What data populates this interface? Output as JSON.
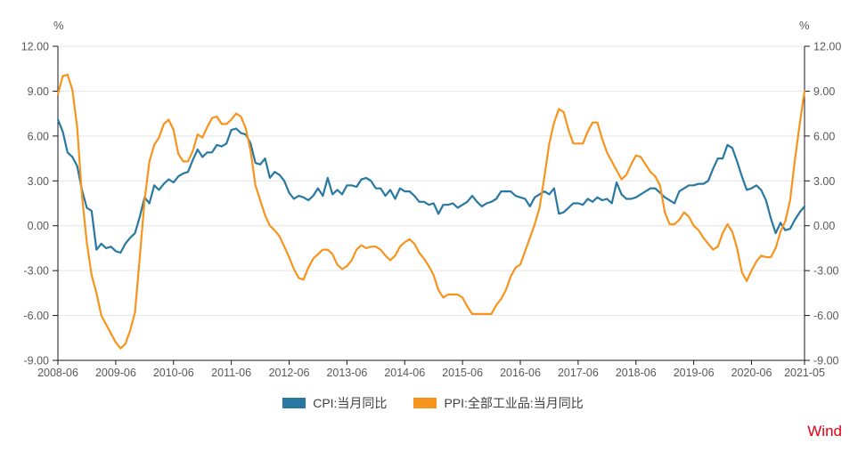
{
  "watermark": {
    "label": "Wind",
    "color": "#E60012"
  },
  "legend": {
    "position": "bottom-center"
  },
  "chart_data": {
    "type": "line",
    "title": "",
    "frequency": "monthly",
    "x_range": [
      "2008-06",
      "2021-05"
    ],
    "grid": {
      "horizontal": true,
      "vertical": false,
      "color": "#E4E4E4"
    },
    "axis_color": "#1A1A1A",
    "tick_label_color": "#595959",
    "y_axis": {
      "unit": "%",
      "min": -9,
      "max": 12,
      "step": 3,
      "tick_labels": [
        "12.00",
        "9.00",
        "6.00",
        "3.00",
        "0.00",
        "-3.00",
        "-6.00",
        "-9.00"
      ],
      "tick_values": [
        12,
        9,
        6,
        3,
        0,
        -3,
        -6,
        -9
      ],
      "dual_axis": true
    },
    "x_axis": {
      "tick_labels": [
        "2008-06",
        "2009-06",
        "2010-06",
        "2011-06",
        "2012-06",
        "2013-06",
        "2014-06",
        "2015-06",
        "2016-06",
        "2017-06",
        "2018-06",
        "2019-06",
        "2020-06",
        "2021-05"
      ],
      "tick_month_indices": [
        0,
        12,
        24,
        36,
        48,
        60,
        72,
        84,
        96,
        108,
        120,
        132,
        144,
        155
      ]
    },
    "series": [
      {
        "name": "CPI:当月同比",
        "color": "#2878A2",
        "values": [
          7.1,
          6.3,
          4.9,
          4.6,
          4.0,
          2.4,
          1.2,
          1.0,
          -1.6,
          -1.2,
          -1.5,
          -1.4,
          -1.7,
          -1.8,
          -1.2,
          -0.8,
          -0.5,
          0.6,
          1.9,
          1.5,
          2.7,
          2.4,
          2.8,
          3.1,
          2.9,
          3.3,
          3.5,
          3.6,
          4.4,
          5.1,
          4.6,
          4.9,
          4.9,
          5.4,
          5.3,
          5.5,
          6.4,
          6.5,
          6.2,
          6.1,
          5.5,
          4.2,
          4.1,
          4.5,
          3.2,
          3.6,
          3.4,
          3.0,
          2.2,
          1.8,
          2.0,
          1.9,
          1.7,
          2.0,
          2.5,
          2.0,
          3.2,
          2.1,
          2.4,
          2.1,
          2.7,
          2.7,
          2.6,
          3.1,
          3.2,
          3.0,
          2.5,
          2.5,
          2.0,
          2.4,
          1.8,
          2.5,
          2.3,
          2.3,
          2.0,
          1.6,
          1.6,
          1.4,
          1.5,
          0.8,
          1.4,
          1.4,
          1.5,
          1.2,
          1.4,
          1.6,
          2.0,
          1.6,
          1.3,
          1.5,
          1.6,
          1.8,
          2.3,
          2.3,
          2.3,
          2.0,
          1.9,
          1.8,
          1.3,
          1.9,
          2.1,
          2.3,
          2.1,
          2.5,
          0.8,
          0.9,
          1.2,
          1.5,
          1.5,
          1.4,
          1.8,
          1.6,
          1.9,
          1.7,
          1.8,
          1.5,
          2.9,
          2.1,
          1.8,
          1.8,
          1.9,
          2.1,
          2.3,
          2.5,
          2.5,
          2.2,
          1.9,
          1.7,
          1.5,
          2.3,
          2.5,
          2.7,
          2.7,
          2.8,
          2.8,
          3.0,
          3.8,
          4.5,
          4.5,
          5.4,
          5.2,
          4.3,
          3.3,
          2.4,
          2.5,
          2.7,
          2.4,
          1.7,
          0.5,
          -0.5,
          0.2,
          -0.3,
          -0.2,
          0.4,
          0.9,
          1.3
        ]
      },
      {
        "name": "PPI:全部工业品:当月同比",
        "color": "#F7941E",
        "values": [
          8.8,
          10.0,
          10.1,
          9.1,
          6.6,
          2.0,
          -1.1,
          -3.3,
          -4.5,
          -6.0,
          -6.6,
          -7.2,
          -7.8,
          -8.2,
          -7.9,
          -7.0,
          -5.8,
          -2.1,
          1.7,
          4.3,
          5.4,
          5.9,
          6.8,
          7.1,
          6.4,
          4.8,
          4.3,
          4.3,
          5.0,
          6.1,
          5.9,
          6.6,
          7.2,
          7.3,
          6.8,
          6.8,
          7.1,
          7.5,
          7.3,
          6.5,
          5.0,
          2.7,
          1.7,
          0.7,
          0.0,
          -0.3,
          -0.7,
          -1.4,
          -2.1,
          -2.9,
          -3.5,
          -3.6,
          -2.8,
          -2.2,
          -1.9,
          -1.6,
          -1.6,
          -1.9,
          -2.6,
          -2.9,
          -2.7,
          -2.3,
          -1.6,
          -1.3,
          -1.5,
          -1.4,
          -1.4,
          -1.6,
          -2.0,
          -2.3,
          -2.0,
          -1.4,
          -1.1,
          -0.9,
          -1.2,
          -1.8,
          -2.2,
          -2.7,
          -3.3,
          -4.3,
          -4.8,
          -4.6,
          -4.6,
          -4.6,
          -4.8,
          -5.4,
          -5.9,
          -5.9,
          -5.9,
          -5.9,
          -5.9,
          -5.3,
          -4.9,
          -4.3,
          -3.4,
          -2.8,
          -2.6,
          -1.7,
          -0.8,
          0.1,
          1.2,
          3.3,
          5.5,
          6.9,
          7.8,
          7.6,
          6.4,
          5.5,
          5.5,
          5.5,
          6.3,
          6.9,
          6.9,
          5.8,
          4.9,
          4.3,
          3.7,
          3.1,
          3.4,
          4.1,
          4.7,
          4.6,
          4.1,
          3.6,
          3.3,
          2.7,
          0.9,
          0.1,
          0.1,
          0.4,
          0.9,
          0.6,
          0.0,
          -0.3,
          -0.8,
          -1.2,
          -1.6,
          -1.4,
          -0.5,
          0.1,
          -0.4,
          -1.5,
          -3.1,
          -3.7,
          -3.0,
          -2.4,
          -2.0,
          -2.1,
          -2.1,
          -1.5,
          -0.4,
          0.3,
          1.7,
          4.4,
          6.8,
          9.0
        ]
      }
    ]
  }
}
